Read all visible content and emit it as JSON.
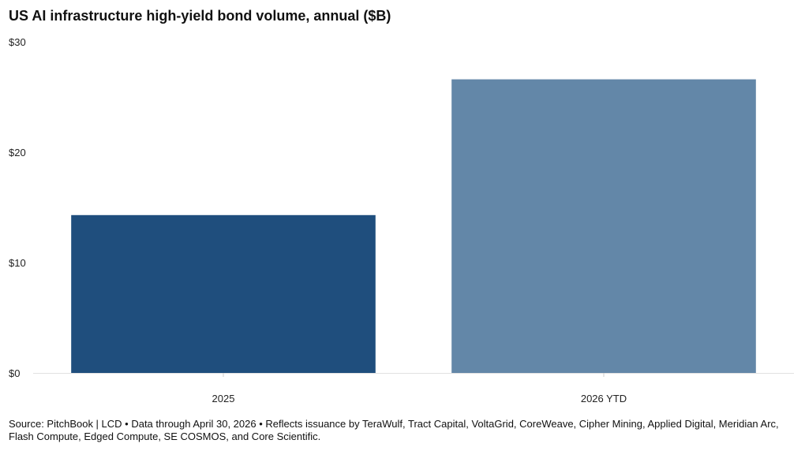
{
  "chart_data": {
    "type": "bar",
    "title": "US AI infrastructure high-yield bond volume, annual ($B)",
    "categories": [
      "2025",
      "2026 YTD"
    ],
    "values": [
      14.3,
      26.6
    ],
    "ylim": [
      0,
      30
    ],
    "yticks": [
      0,
      10,
      20,
      30
    ],
    "ytick_labels": [
      "$0",
      "$10",
      "$20",
      "$30"
    ],
    "xlabel": "",
    "ylabel": "",
    "grid": false,
    "colors": [
      "#1f4e7d",
      "#6387a8"
    ]
  },
  "footer": {
    "source": "Source: PitchBook | LCD • Data through April 30, 2026 • Reflects issuance by TeraWulf, Tract Capital, VoltaGrid, CoreWeave, Cipher Mining, Applied Digital, Meridian Arc, Flash Compute, Edged Compute, SE COSMOS, and Core Scientific."
  }
}
